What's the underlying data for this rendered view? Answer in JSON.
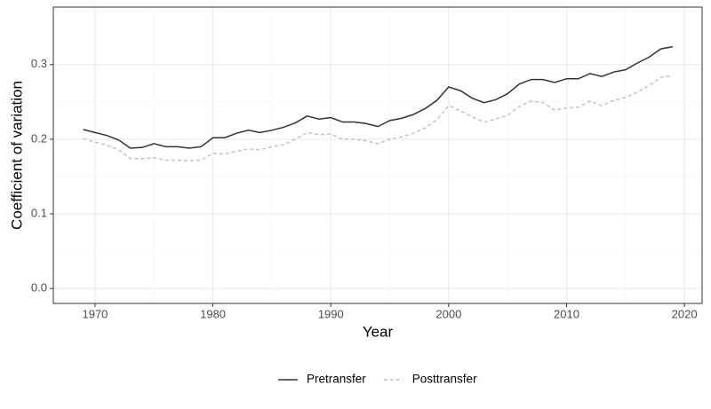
{
  "chart_data": {
    "type": "line",
    "x_label": "Year",
    "y_label": "Coefficient of variation",
    "x": [
      1969,
      1970,
      1971,
      1972,
      1973,
      1974,
      1975,
      1976,
      1977,
      1978,
      1979,
      1980,
      1981,
      1982,
      1983,
      1984,
      1985,
      1986,
      1987,
      1988,
      1989,
      1990,
      1991,
      1992,
      1993,
      1994,
      1995,
      1996,
      1997,
      1998,
      1999,
      2000,
      2001,
      2002,
      2003,
      2004,
      2005,
      2006,
      2007,
      2008,
      2009,
      2010,
      2011,
      2012,
      2013,
      2014,
      2015,
      2016,
      2017,
      2018,
      2019
    ],
    "series": [
      {
        "name": "Pretransfer",
        "color": "#333333",
        "dash": false,
        "values": [
          0.213,
          0.209,
          0.205,
          0.199,
          0.188,
          0.189,
          0.194,
          0.19,
          0.19,
          0.188,
          0.19,
          0.202,
          0.202,
          0.208,
          0.212,
          0.209,
          0.212,
          0.216,
          0.222,
          0.231,
          0.227,
          0.229,
          0.223,
          0.223,
          0.221,
          0.217,
          0.225,
          0.228,
          0.233,
          0.241,
          0.252,
          0.27,
          0.265,
          0.255,
          0.249,
          0.253,
          0.261,
          0.274,
          0.28,
          0.28,
          0.276,
          0.281,
          0.281,
          0.288,
          0.284,
          0.29,
          0.293,
          0.302,
          0.31,
          0.321,
          0.324
        ]
      },
      {
        "name": "Posttransfer",
        "color": "#c2c2c2",
        "dash": true,
        "values": [
          0.201,
          0.196,
          0.192,
          0.186,
          0.174,
          0.174,
          0.175,
          0.172,
          0.172,
          0.171,
          0.172,
          0.181,
          0.18,
          0.184,
          0.187,
          0.186,
          0.19,
          0.193,
          0.2,
          0.209,
          0.206,
          0.207,
          0.2,
          0.2,
          0.198,
          0.194,
          0.2,
          0.203,
          0.208,
          0.215,
          0.226,
          0.245,
          0.238,
          0.23,
          0.223,
          0.227,
          0.232,
          0.244,
          0.251,
          0.249,
          0.239,
          0.242,
          0.243,
          0.251,
          0.245,
          0.252,
          0.256,
          0.263,
          0.272,
          0.283,
          0.285
        ]
      }
    ],
    "xlim": [
      1966.46,
      2021.5
    ],
    "xticks": [
      1970,
      1980,
      1990,
      2000,
      2010,
      2020
    ],
    "ylim": [
      -0.02,
      0.377
    ],
    "yticks": [
      {
        "value": 0,
        "label": "0.0"
      },
      0.1,
      0.2,
      0.3
    ],
    "grid": true,
    "legend": "bottom"
  }
}
